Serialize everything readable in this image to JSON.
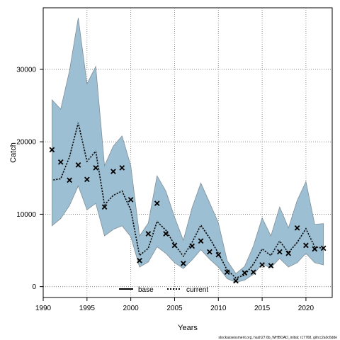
{
  "chart_data": {
    "type": "line",
    "xlabel": "Years",
    "ylabel": "Catch",
    "xlim": [
      1990,
      2023
    ],
    "ylim": [
      -1500,
      38500
    ],
    "x_ticks": [
      1990,
      1995,
      2000,
      2005,
      2010,
      2015,
      2020
    ],
    "y_ticks": [
      0,
      10000,
      20000,
      30000
    ],
    "grid": true,
    "legend_position": "bottom-center",
    "legend": [
      {
        "name": "base",
        "style": "solid",
        "color": "#000000"
      },
      {
        "name": "current",
        "style": "dotted",
        "color": "#000000"
      }
    ],
    "colors": {
      "band_fill": "#9dbfd3",
      "band_stroke": "#7f8f99",
      "grid": "#777777"
    },
    "years": [
      1991,
      1992,
      1993,
      1994,
      1995,
      1996,
      1997,
      1998,
      1999,
      2000,
      2001,
      2002,
      2003,
      2004,
      2005,
      2006,
      2007,
      2008,
      2009,
      2010,
      2011,
      2012,
      2013,
      2014,
      2015,
      2016,
      2017,
      2018,
      2019,
      2020,
      2021,
      2022
    ],
    "observed_catch": [
      18900,
      17200,
      14700,
      16800,
      14800,
      16400,
      11000,
      15900,
      16400,
      12000,
      3600,
      7300,
      11500,
      7300,
      5700,
      3200,
      5600,
      6300,
      4800,
      4400,
      2000,
      800,
      1900,
      2000,
      3000,
      2900,
      4800,
      4600,
      8100,
      5700,
      5200,
      5300
    ],
    "series": [
      {
        "name": "current",
        "median": [
          14700,
          14900,
          17900,
          22600,
          17300,
          18700,
          11300,
          12600,
          13200,
          10600,
          4300,
          5300,
          9000,
          7800,
          5800,
          4200,
          6100,
          8500,
          6700,
          4600,
          2300,
          1200,
          1600,
          3100,
          5200,
          4300,
          6300,
          4700,
          6100,
          8000,
          5500,
          5300
        ],
        "lower": [
          8400,
          9400,
          11200,
          13900,
          10600,
          11500,
          7000,
          7900,
          8400,
          6900,
          2700,
          3400,
          5500,
          4600,
          3300,
          2500,
          3700,
          5100,
          3800,
          2700,
          1100,
          600,
          900,
          1700,
          3100,
          2600,
          3900,
          2700,
          3300,
          4600,
          3300,
          3000
        ],
        "upper": [
          25800,
          24500,
          29800,
          37100,
          28000,
          30400,
          16700,
          19400,
          20800,
          16700,
          7000,
          8800,
          15300,
          13200,
          9600,
          6400,
          10900,
          14300,
          11600,
          8800,
          3600,
          1800,
          2800,
          5600,
          9500,
          7000,
          11000,
          8100,
          11900,
          14500,
          8600,
          8700
        ]
      }
    ]
  },
  "footer": {
    "text": "stockassessment.org, hash27.6b_WHBOAD_initial; r17768, gitrcc2a0c6dde"
  }
}
